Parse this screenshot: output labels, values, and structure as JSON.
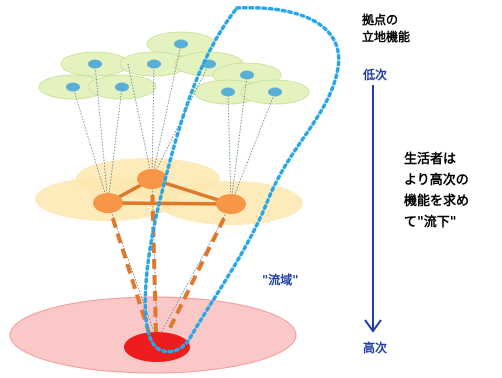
{
  "title_line1": "拠点の",
  "title_line2": "立地機能",
  "axis_low": "低次",
  "axis_high": "高次",
  "note_line1": "生活者は",
  "note_line2": "より高次の",
  "note_line3": "機能を求め",
  "note_line4": "て\"流下\"",
  "region_label": "\"流域\"",
  "colors": {
    "top_node": "#5aaed6",
    "top_ellipse": "#e4f2c0",
    "mid_node": "#f79646",
    "mid_ellipse": "#fde7b0",
    "bottom_node": "#ee1c1c",
    "bottom_ellipse": "#fbc8c8",
    "watershed_outline": "#2aa7e8",
    "arrow": "#1f3fa8",
    "connection": "#e0782a"
  }
}
